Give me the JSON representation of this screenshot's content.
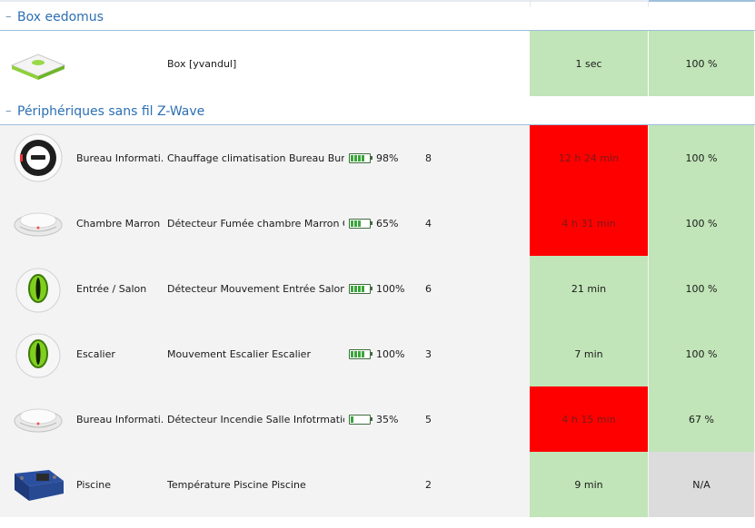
{
  "groups": [
    {
      "title": "Box eedomus",
      "rows": [
        {
          "icon": "eedomus-box-icon",
          "room": "",
          "name": "Box [yvandul]",
          "battery": "",
          "battery_bars": 0,
          "count": "",
          "comm": "1 sec",
          "comm_status": "ok",
          "signal": "100 %",
          "signal_status": "ok"
        }
      ]
    },
    {
      "title": "Périphériques sans fil Z-Wave",
      "rows": [
        {
          "icon": "thermostat-icon",
          "room": "Bureau Informati...",
          "name": "Chauffage climatisation Bureau Bure...",
          "battery": "98%",
          "battery_bars": 4,
          "count": "8",
          "comm": "12 h 24 min",
          "comm_status": "alert",
          "signal": "100 %",
          "signal_status": "ok"
        },
        {
          "icon": "smoke-detector-icon",
          "room": "Chambre Marron",
          "name": "Détecteur Fumée chambre Marron C...",
          "battery": "65%",
          "battery_bars": 3,
          "count": "4",
          "comm": "4 h 31 min",
          "comm_status": "alert",
          "signal": "100 %",
          "signal_status": "ok"
        },
        {
          "icon": "motion-sensor-icon",
          "room": "Entrée / Salon",
          "name": "Détecteur Mouvement Entrée Salon E...",
          "battery": "100%",
          "battery_bars": 4,
          "count": "6",
          "comm": "21 min",
          "comm_status": "ok",
          "signal": "100 %",
          "signal_status": "ok"
        },
        {
          "icon": "motion-sensor-icon",
          "room": "Escalier",
          "name": "Mouvement Escalier Escalier",
          "battery": "100%",
          "battery_bars": 4,
          "count": "3",
          "comm": "7 min",
          "comm_status": "ok",
          "signal": "100 %",
          "signal_status": "ok"
        },
        {
          "icon": "smoke-detector-icon",
          "room": "Bureau Informati...",
          "name": "Détecteur Incendie Salle Infotrmatiqu...",
          "battery": "35%",
          "battery_bars": 1,
          "count": "5",
          "comm": "4 h 15 min",
          "comm_status": "alert",
          "signal": "67 %",
          "signal_status": "ok"
        },
        {
          "icon": "relay-module-icon",
          "room": "Piscine",
          "name": "Température Piscine Piscine",
          "battery": "",
          "battery_bars": 0,
          "count": "2",
          "comm": "9 min",
          "comm_status": "ok",
          "signal": "N/A",
          "signal_status": "na"
        }
      ]
    }
  ],
  "colors": {
    "ok": "#c1e5b8",
    "alert": "#ff0000",
    "na": "#dcdcdc",
    "header_text": "#2c6fb3"
  }
}
